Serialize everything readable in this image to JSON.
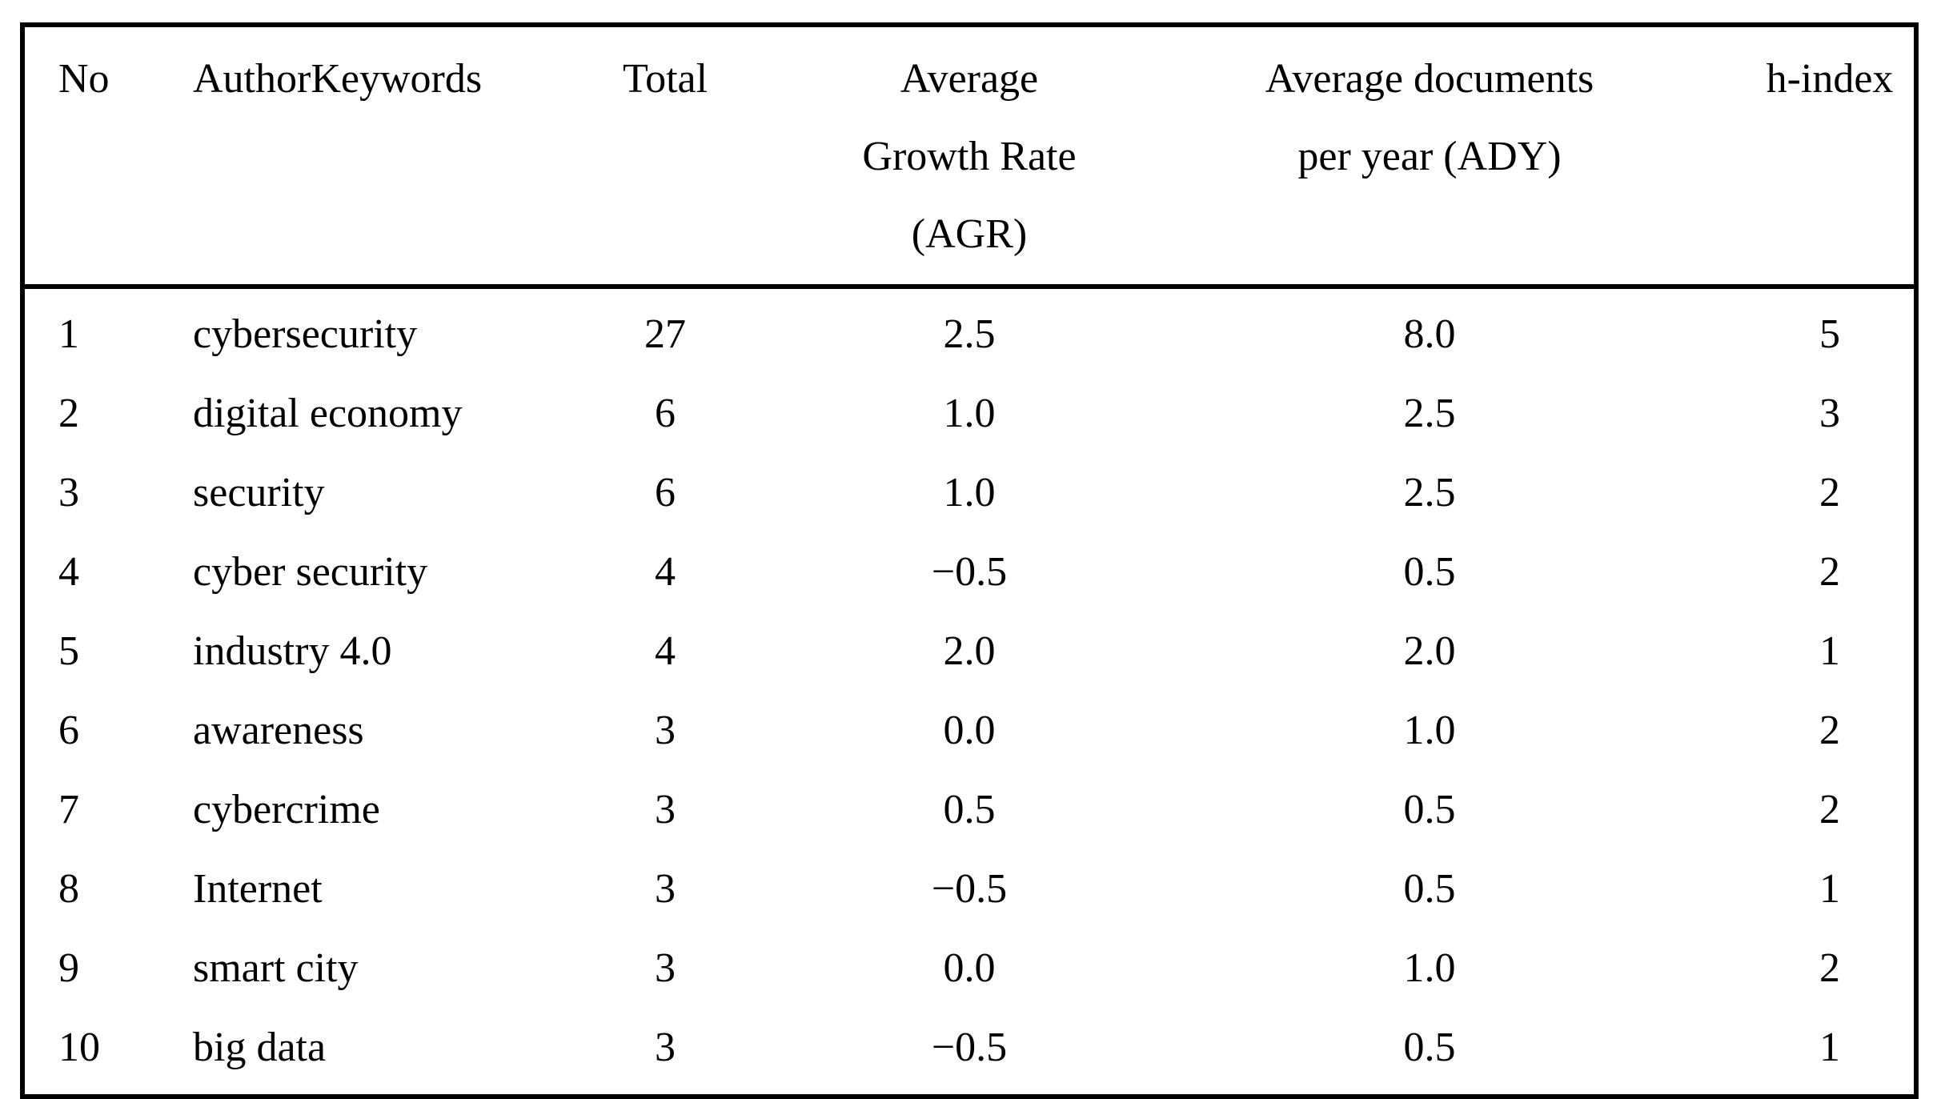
{
  "table": {
    "headers": {
      "no": "No",
      "keywords": "AuthorKeywords",
      "total": "Total",
      "agr": "Average\nGrowth Rate\n(AGR)",
      "ady": "Average documents\nper year (ADY)",
      "hindex": "h-index"
    },
    "rows": [
      {
        "no": "1",
        "keywords": "cybersecurity",
        "total": "27",
        "agr": "2.5",
        "ady": "8.0",
        "hindex": "5"
      },
      {
        "no": "2",
        "keywords": "digital economy",
        "total": "6",
        "agr": "1.0",
        "ady": "2.5",
        "hindex": "3"
      },
      {
        "no": "3",
        "keywords": "security",
        "total": "6",
        "agr": "1.0",
        "ady": "2.5",
        "hindex": "2"
      },
      {
        "no": "4",
        "keywords": "cyber security",
        "total": "4",
        "agr": "−0.5",
        "ady": "0.5",
        "hindex": "2"
      },
      {
        "no": "5",
        "keywords": "industry 4.0",
        "total": "4",
        "agr": "2.0",
        "ady": "2.0",
        "hindex": "1"
      },
      {
        "no": "6",
        "keywords": "awareness",
        "total": "3",
        "agr": "0.0",
        "ady": "1.0",
        "hindex": "2"
      },
      {
        "no": "7",
        "keywords": "cybercrime",
        "total": "3",
        "agr": "0.5",
        "ady": "0.5",
        "hindex": "2"
      },
      {
        "no": "8",
        "keywords": "Internet",
        "total": "3",
        "agr": "−0.5",
        "ady": "0.5",
        "hindex": "1"
      },
      {
        "no": "9",
        "keywords": "smart city",
        "total": "3",
        "agr": "0.0",
        "ady": "1.0",
        "hindex": "2"
      },
      {
        "no": "10",
        "keywords": "big data",
        "total": "3",
        "agr": "−0.5",
        "ady": "0.5",
        "hindex": "1"
      }
    ]
  },
  "colors": {
    "border": "#000000",
    "text": "#000000",
    "background": "#ffffff"
  },
  "chart_data": {
    "type": "table",
    "title": "",
    "columns": [
      "No",
      "AuthorKeywords",
      "Total",
      "Average Growth Rate (AGR)",
      "Average documents per year (ADY)",
      "h-index"
    ],
    "rows": [
      [
        1,
        "cybersecurity",
        27,
        2.5,
        8.0,
        5
      ],
      [
        2,
        "digital economy",
        6,
        1.0,
        2.5,
        3
      ],
      [
        3,
        "security",
        6,
        1.0,
        2.5,
        2
      ],
      [
        4,
        "cyber security",
        4,
        -0.5,
        0.5,
        2
      ],
      [
        5,
        "industry 4.0",
        4,
        2.0,
        2.0,
        1
      ],
      [
        6,
        "awareness",
        3,
        0.0,
        1.0,
        2
      ],
      [
        7,
        "cybercrime",
        3,
        0.5,
        0.5,
        2
      ],
      [
        8,
        "Internet",
        3,
        -0.5,
        0.5,
        1
      ],
      [
        9,
        "smart city",
        3,
        0.0,
        1.0,
        2
      ],
      [
        10,
        "big data",
        3,
        -0.5,
        0.5,
        1
      ]
    ]
  }
}
